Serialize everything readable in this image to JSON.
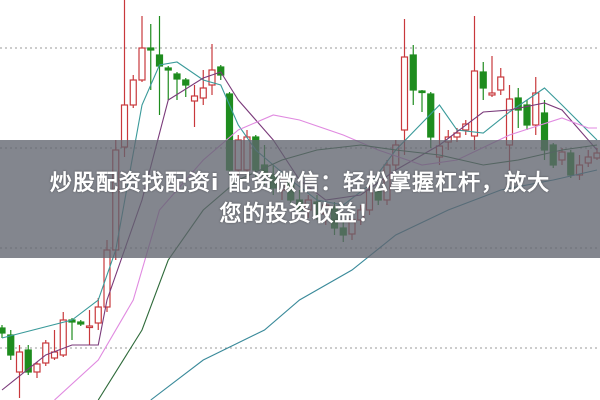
{
  "overlay": {
    "line1": "炒股配资找配资i 配资微信：轻松掌握杠杆，放大",
    "line2": "您的投资收益！"
  },
  "chart_data": {
    "type": "candlestick",
    "title": "",
    "grid": {
      "style": "dotted",
      "levels": [
        352,
        252,
        152,
        52
      ]
    },
    "ylim": [
      0,
      400
    ],
    "colors": {
      "up": "#c8383c",
      "down": "#1e8c1e",
      "ma5": "#3a9a9a",
      "ma10": "#7a3a7a",
      "ma20": "#e08ae0",
      "ma30": "#2e6a3a",
      "ma60": "#3a8a9a",
      "grid": "#999999"
    },
    "candles_ohlc": [
      [
        72,
        75,
        62,
        67
      ],
      [
        65,
        70,
        40,
        45
      ],
      [
        28,
        55,
        2,
        48
      ],
      [
        50,
        55,
        25,
        28
      ],
      [
        28,
        38,
        22,
        36
      ],
      [
        37,
        60,
        34,
        57
      ],
      [
        42,
        70,
        40,
        48
      ],
      [
        45,
        88,
        43,
        80
      ],
      [
        80,
        82,
        60,
        78
      ],
      [
        78,
        80,
        74,
        76
      ],
      [
        73,
        90,
        55,
        74
      ],
      [
        77,
        102,
        70,
        93
      ],
      [
        93,
        160,
        88,
        150
      ],
      [
        150,
        260,
        140,
        250
      ],
      [
        253,
        400,
        243,
        295
      ],
      [
        295,
        325,
        292,
        320
      ],
      [
        320,
        384,
        318,
        352
      ],
      [
        352,
        376,
        310,
        350
      ],
      [
        345,
        384,
        285,
        334
      ],
      [
        332,
        334,
        300,
        330
      ],
      [
        326,
        328,
        300,
        321
      ],
      [
        320,
        322,
        303,
        315
      ],
      [
        299,
        315,
        273,
        304
      ],
      [
        302,
        330,
        295,
        312
      ],
      [
        315,
        356,
        305,
        330
      ],
      [
        333,
        335,
        320,
        325
      ],
      [
        306,
        308,
        225,
        230
      ],
      [
        230,
        265,
        210,
        260
      ],
      [
        230,
        270,
        225,
        263
      ],
      [
        263,
        265,
        220,
        230
      ],
      [
        235,
        255,
        215,
        225
      ],
      [
        225,
        235,
        205,
        212
      ],
      [
        210,
        225,
        200,
        220
      ],
      [
        220,
        228,
        195,
        200
      ],
      [
        200,
        210,
        185,
        190
      ],
      [
        190,
        205,
        182,
        200
      ],
      [
        198,
        205,
        180,
        185
      ],
      [
        186,
        198,
        175,
        195
      ],
      [
        192,
        198,
        165,
        172
      ],
      [
        172,
        180,
        158,
        165
      ],
      [
        166,
        185,
        160,
        180
      ],
      [
        180,
        195,
        175,
        190
      ],
      [
        190,
        215,
        185,
        210
      ],
      [
        210,
        218,
        195,
        200
      ],
      [
        200,
        240,
        195,
        235
      ],
      [
        235,
        260,
        230,
        255
      ],
      [
        270,
        381,
        245,
        343
      ],
      [
        345,
        355,
        295,
        310
      ],
      [
        309,
        310,
        288,
        308
      ],
      [
        306,
        308,
        252,
        263
      ],
      [
        243,
        287,
        235,
        254
      ],
      [
        258,
        270,
        250,
        263
      ],
      [
        263,
        272,
        258,
        267
      ],
      [
        270,
        280,
        265,
        276
      ],
      [
        264,
        384,
        250,
        329
      ],
      [
        328,
        338,
        300,
        312
      ],
      [
        305,
        344,
        303,
        307
      ],
      [
        310,
        332,
        305,
        323
      ],
      [
        255,
        315,
        230,
        301
      ],
      [
        302,
        312,
        272,
        290
      ],
      [
        295,
        300,
        270,
        275
      ],
      [
        275,
        323,
        265,
        307
      ],
      [
        287,
        300,
        240,
        250
      ],
      [
        255,
        257,
        232,
        235
      ],
      [
        240,
        252,
        235,
        248
      ],
      [
        247,
        250,
        222,
        225
      ],
      [
        225,
        245,
        220,
        235
      ],
      [
        237,
        250,
        233,
        243
      ],
      [
        242,
        252,
        240,
        247
      ]
    ],
    "moving_averages": [
      {
        "key": "ma5",
        "points": [
          [
            0,
            62
          ],
          [
            8,
            80
          ],
          [
            11,
            100
          ],
          [
            13,
            150
          ],
          [
            16,
            295
          ],
          [
            18,
            335
          ],
          [
            20,
            338
          ],
          [
            23,
            320
          ],
          [
            25,
            315
          ],
          [
            27,
            275
          ],
          [
            29,
            250
          ],
          [
            33,
            220
          ],
          [
            36,
            200
          ],
          [
            39,
            195
          ],
          [
            42,
            215
          ],
          [
            45,
            250
          ],
          [
            50,
            295
          ],
          [
            52,
            270
          ],
          [
            55,
            267
          ],
          [
            58,
            288
          ],
          [
            60,
            300
          ],
          [
            62,
            312
          ],
          [
            64,
            295
          ],
          [
            68,
            260
          ]
        ]
      },
      {
        "key": "ma10",
        "points": [
          [
            0,
            10
          ],
          [
            5,
            45
          ],
          [
            8,
            55
          ],
          [
            11,
            55
          ],
          [
            12,
            100
          ],
          [
            16,
            200
          ],
          [
            19,
            300
          ],
          [
            23,
            322
          ],
          [
            25,
            328
          ],
          [
            27,
            300
          ],
          [
            31,
            260
          ],
          [
            34,
            220
          ],
          [
            37,
            200
          ],
          [
            41,
            205
          ],
          [
            45,
            230
          ],
          [
            50,
            255
          ],
          [
            55,
            288
          ],
          [
            58,
            290
          ],
          [
            62,
            297
          ],
          [
            64,
            290
          ],
          [
            68,
            250
          ]
        ]
      },
      {
        "key": "ma20",
        "points": [
          [
            6,
            0
          ],
          [
            11,
            40
          ],
          [
            15,
            100
          ],
          [
            18,
            190
          ],
          [
            23,
            240
          ],
          [
            27,
            270
          ],
          [
            31,
            285
          ],
          [
            34,
            280
          ],
          [
            39,
            265
          ],
          [
            43,
            250
          ],
          [
            48,
            235
          ],
          [
            52,
            240
          ],
          [
            58,
            265
          ],
          [
            64,
            282
          ],
          [
            67,
            272
          ],
          [
            68,
            272
          ]
        ]
      },
      {
        "key": "ma30",
        "points": [
          [
            11,
            0
          ],
          [
            16,
            70
          ],
          [
            19,
            140
          ],
          [
            23,
            190
          ],
          [
            27,
            220
          ],
          [
            32,
            240
          ],
          [
            36,
            250
          ],
          [
            41,
            255
          ],
          [
            45,
            250
          ],
          [
            50,
            245
          ],
          [
            55,
            235
          ],
          [
            59,
            240
          ],
          [
            64,
            250
          ],
          [
            68,
            255
          ]
        ]
      },
      {
        "key": "ma60",
        "points": [
          [
            17,
            0
          ],
          [
            23,
            40
          ],
          [
            30,
            70
          ],
          [
            34,
            100
          ],
          [
            40,
            130
          ],
          [
            45,
            165
          ],
          [
            51,
            190
          ],
          [
            57,
            210
          ],
          [
            63,
            220
          ],
          [
            68,
            230
          ]
        ]
      }
    ]
  }
}
